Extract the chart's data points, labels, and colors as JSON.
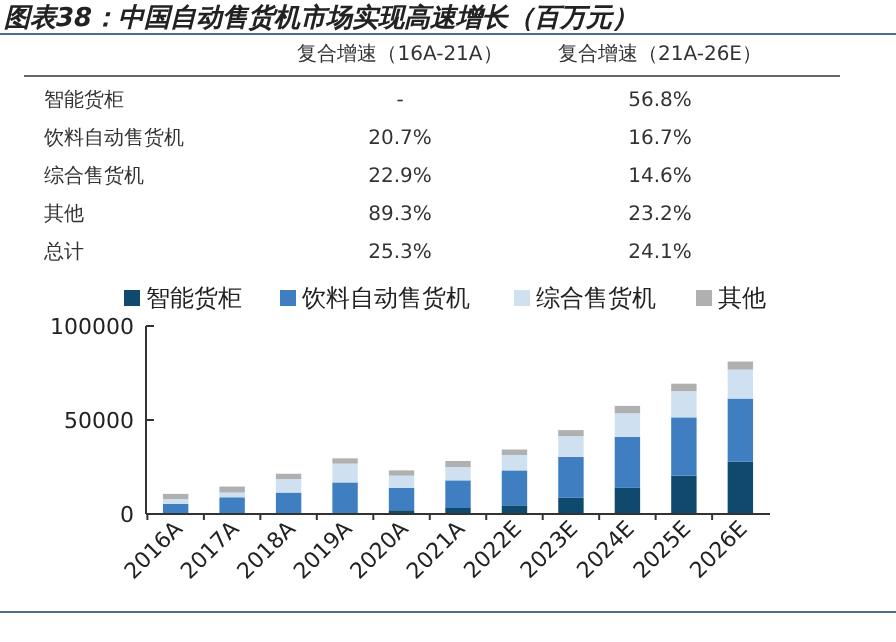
{
  "chart_data": {
    "type": "bar",
    "title": "图表38：中国自动售货机市场实现高速增长（百万元）",
    "annotations": [
      "复合增速（16A-21A）",
      "复合增速（21A-26E）",
      "智能货柜",
      "-",
      "56.8%",
      "饮料自动售货机",
      "20.7%",
      "16.7%",
      "综合售货机",
      "22.9%",
      "14.6%",
      "其他",
      "89.3%",
      "23.2%",
      "总计",
      "25.3%",
      "24.1%"
    ],
    "categories": [
      "2016A",
      "2017A",
      "2018A",
      "2019A",
      "2020A",
      "2021A",
      "2022E",
      "2023E",
      "2024E",
      "2025E",
      "2026E"
    ],
    "stacked": true,
    "legend": "top",
    "grid": false,
    "ylim": [
      0,
      100000
    ],
    "yticks": [
      0,
      50000,
      100000
    ],
    "series": [
      {
        "name": "智能货柜",
        "color": "#0f4a6e",
        "values": [
          300,
          200,
          300,
          400,
          2000,
          3200,
          4600,
          8600,
          13900,
          20400,
          27900
        ]
      },
      {
        "name": "饮料自动售货机",
        "color": "#3f7fc1",
        "values": [
          5100,
          8700,
          11100,
          16400,
          11900,
          14700,
          18600,
          21800,
          27200,
          31000,
          33500
        ]
      },
      {
        "name": "综合售货机",
        "color": "#cfe0f1",
        "values": [
          2500,
          2500,
          7200,
          10000,
          6500,
          7100,
          8200,
          11000,
          12500,
          14000,
          15400
        ]
      },
      {
        "name": "其他",
        "color": "#b0b0b0",
        "values": [
          2800,
          3200,
          2800,
          2800,
          2800,
          3200,
          2900,
          3200,
          3900,
          3900,
          4300
        ]
      }
    ]
  }
}
